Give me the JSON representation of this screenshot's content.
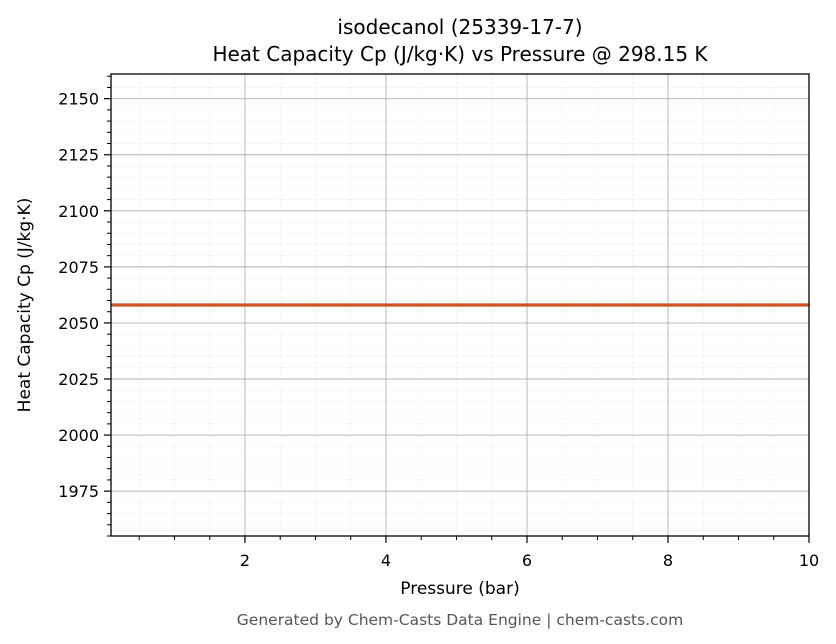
{
  "title_line1": "isodecanol (25339-17-7)",
  "title_line2": "Heat Capacity Cp (J/kg·K) vs Pressure @ 298.15 K",
  "footer": "Generated by Chem-Casts Data Engine | chem-casts.com",
  "colors": {
    "series": "#cc5427",
    "grid_major": "#b0b0b0",
    "grid_minor": "#e6e6e6",
    "axes": "#000000",
    "footer": "#555555"
  },
  "chart_data": {
    "type": "line",
    "title": "isodecanol (25339-17-7)\nHeat Capacity Cp (J/kg·K) vs Pressure @ 298.15 K",
    "xlabel": "Pressure (bar)",
    "ylabel": "Heat Capacity Cp (J/kg·K)",
    "xlim": [
      0.1,
      10
    ],
    "ylim": [
      1955,
      2161
    ],
    "x_ticks": [
      2,
      4,
      6,
      8,
      10
    ],
    "y_ticks": [
      1975,
      2000,
      2025,
      2050,
      2075,
      2100,
      2125,
      2150
    ],
    "x_minor_step": 0.5,
    "y_minor_step": 5,
    "grid": true,
    "legend": "none",
    "series": [
      {
        "x": [
          0.1,
          10
        ],
        "values": [
          2058,
          2058
        ],
        "color": "#cc5427"
      }
    ]
  }
}
